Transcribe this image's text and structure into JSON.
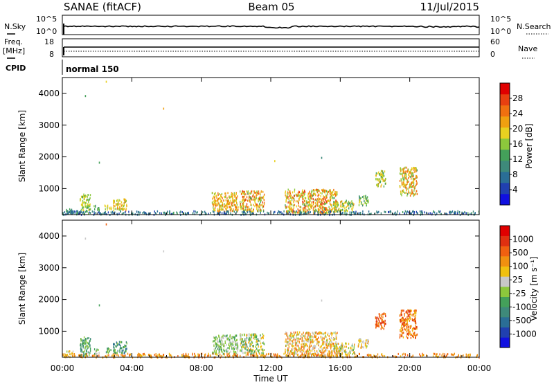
{
  "header": {
    "station": "SANAE (fitACF)",
    "beam": "Beam 05",
    "date": "11/Jul/2015"
  },
  "panels": {
    "noise": {
      "left_label": "N.Sky",
      "right_label": "N.Search",
      "left_ticks": [
        "10^5",
        "10^0"
      ],
      "right_ticks": [
        "10^5",
        "10^0"
      ]
    },
    "freq": {
      "left_label": "Freq.",
      "left_unit": "[MHz]",
      "right_label": "Nave",
      "left_ticks": [
        "18",
        "8"
      ],
      "right_ticks": [
        "60",
        "0"
      ]
    },
    "cpid": {
      "label": "CPID",
      "program": "normal 150"
    }
  },
  "colors": {
    "power": [
      "#1010e0",
      "#2040b0",
      "#2a6e96",
      "#3e8a7a",
      "#44a05a",
      "#8cc83c",
      "#e8d020",
      "#f0a010",
      "#f07010",
      "#e84010",
      "#e00000"
    ],
    "velocity": [
      "#1010e0",
      "#2040b0",
      "#2a6e96",
      "#3e8a7a",
      "#44a05a",
      "#8cc83c",
      "#c8c8c8",
      "#f0c010",
      "#f09010",
      "#f06010",
      "#e03010",
      "#e00000"
    ]
  },
  "chart_data": [
    {
      "type": "heatmap",
      "title": "Power",
      "ylabel": "Slant Range [km]",
      "xlabel": "",
      "ylim": [
        180,
        4500
      ],
      "y_ticks": [
        1000,
        2000,
        3000,
        4000
      ],
      "colorbar": {
        "label": "Power [dB]",
        "range": [
          0,
          32
        ],
        "ticks": [
          "4",
          "8",
          "12",
          "16",
          "20",
          "24",
          "28"
        ]
      },
      "clusters": [
        {
          "t": [
            0.1,
            0.6
          ],
          "r": [
            200,
            400
          ],
          "v": [
            8,
            14
          ]
        },
        {
          "t": [
            1.0,
            1.6
          ],
          "r": [
            250,
            850
          ],
          "v": [
            12,
            20
          ]
        },
        {
          "t": [
            1.8,
            2.1
          ],
          "r": [
            300,
            500
          ],
          "v": [
            10,
            16
          ]
        },
        {
          "t": [
            2.4,
            2.8
          ],
          "r": [
            350,
            500
          ],
          "v": [
            14,
            20
          ]
        },
        {
          "t": [
            2.9,
            3.7
          ],
          "r": [
            330,
            700
          ],
          "v": [
            16,
            24
          ]
        },
        {
          "t": [
            8.6,
            10.1
          ],
          "r": [
            300,
            900
          ],
          "v": [
            16,
            26
          ]
        },
        {
          "t": [
            10.2,
            11.6
          ],
          "r": [
            300,
            950
          ],
          "v": [
            14,
            28
          ]
        },
        {
          "t": [
            12.8,
            15.8
          ],
          "r": [
            250,
            1000
          ],
          "v": [
            14,
            28
          ]
        },
        {
          "t": [
            15.6,
            16.8
          ],
          "r": [
            300,
            650
          ],
          "v": [
            12,
            22
          ]
        },
        {
          "t": [
            17.0,
            17.6
          ],
          "r": [
            500,
            800
          ],
          "v": [
            10,
            18
          ]
        },
        {
          "t": [
            18.0,
            18.6
          ],
          "r": [
            1100,
            1600
          ],
          "v": [
            12,
            22
          ]
        },
        {
          "t": [
            19.4,
            20.4
          ],
          "r": [
            800,
            1700
          ],
          "v": [
            14,
            26
          ]
        },
        {
          "t": [
            0.0,
            24.0
          ],
          "r": [
            200,
            320
          ],
          "v": [
            4,
            12
          ]
        }
      ],
      "isolated_points": [
        {
          "t": 1.3,
          "r": 3950,
          "v": 14
        },
        {
          "t": 2.5,
          "r": 4400,
          "v": 20
        },
        {
          "t": 5.8,
          "r": 3550,
          "v": 22
        },
        {
          "t": 2.1,
          "r": 1850,
          "v": 12
        },
        {
          "t": 14.9,
          "r": 2000,
          "v": 10
        },
        {
          "t": 12.2,
          "r": 1900,
          "v": 18
        }
      ]
    },
    {
      "type": "heatmap",
      "title": "Velocity",
      "ylabel": "Slant Range [km]",
      "xlabel": "Time UT",
      "ylim": [
        180,
        4500
      ],
      "y_ticks": [
        1000,
        2000,
        3000,
        4000
      ],
      "x_tick_labels": [
        "00:00",
        "04:00",
        "08:00",
        "12:00",
        "16:00",
        "20:00",
        "00:00"
      ],
      "colorbar": {
        "label": "Velocity [m s⁻¹]",
        "ticks": [
          "1000",
          "500",
          "100",
          "25",
          "-25",
          "-100",
          "-500",
          "-1000"
        ]
      },
      "clusters": [
        {
          "t": [
            0.1,
            0.6
          ],
          "r": [
            200,
            400
          ],
          "v": [
            5,
            8
          ]
        },
        {
          "t": [
            1.0,
            1.6
          ],
          "r": [
            250,
            850
          ],
          "v": [
            3,
            5
          ]
        },
        {
          "t": [
            1.8,
            2.1
          ],
          "r": [
            300,
            500
          ],
          "v": [
            4,
            6
          ]
        },
        {
          "t": [
            2.4,
            2.8
          ],
          "r": [
            350,
            500
          ],
          "v": [
            3,
            5
          ]
        },
        {
          "t": [
            2.9,
            3.7
          ],
          "r": [
            330,
            700
          ],
          "v": [
            2,
            5
          ]
        },
        {
          "t": [
            8.6,
            10.1
          ],
          "r": [
            300,
            900
          ],
          "v": [
            4,
            6
          ]
        },
        {
          "t": [
            10.2,
            11.6
          ],
          "r": [
            300,
            950
          ],
          "v": [
            3,
            8
          ]
        },
        {
          "t": [
            12.8,
            15.8
          ],
          "r": [
            250,
            1000
          ],
          "v": [
            5,
            9
          ]
        },
        {
          "t": [
            15.6,
            16.8
          ],
          "r": [
            300,
            650
          ],
          "v": [
            4,
            8
          ]
        },
        {
          "t": [
            17.0,
            17.6
          ],
          "r": [
            500,
            800
          ],
          "v": [
            5,
            8
          ]
        },
        {
          "t": [
            18.0,
            18.6
          ],
          "r": [
            1100,
            1600
          ],
          "v": [
            8,
            10
          ]
        },
        {
          "t": [
            19.4,
            20.4
          ],
          "r": [
            800,
            1700
          ],
          "v": [
            7,
            10
          ]
        },
        {
          "t": [
            0.0,
            24.0
          ],
          "r": [
            200,
            320
          ],
          "v": [
            7,
            9
          ]
        }
      ],
      "isolated_points": [
        {
          "t": 1.3,
          "r": 3950,
          "v": 6
        },
        {
          "t": 2.5,
          "r": 4400,
          "v": 9
        },
        {
          "t": 5.8,
          "r": 3550,
          "v": 6
        },
        {
          "t": 2.1,
          "r": 1850,
          "v": 4
        },
        {
          "t": 14.9,
          "r": 2000,
          "v": 6
        }
      ]
    }
  ]
}
